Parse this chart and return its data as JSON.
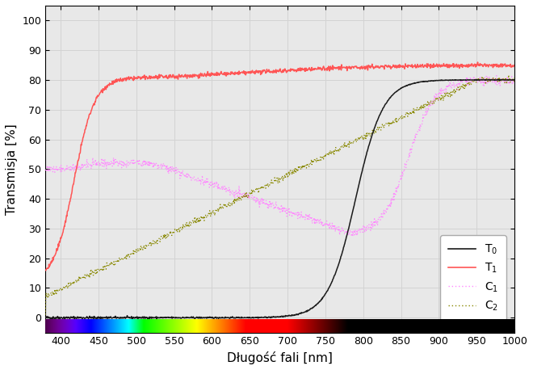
{
  "xlabel": "Długość fali [nm]",
  "ylabel": "Transmisja [%]",
  "xlim": [
    380,
    1000
  ],
  "ylim": [
    -5,
    105
  ],
  "yticks": [
    0,
    10,
    20,
    30,
    40,
    50,
    60,
    70,
    80,
    90,
    100
  ],
  "xticks": [
    400,
    450,
    500,
    550,
    600,
    650,
    700,
    750,
    800,
    850,
    900,
    950,
    1000
  ],
  "grid_color": "#d3d3d3",
  "background_color": "#e8e8e8",
  "line_T0_color": "#1a1a1a",
  "line_T1_color": "#ff5555",
  "line_C1_color": "#ff88ff",
  "line_C2_color": "#888800",
  "spectrum_xmin": 380,
  "spectrum_xmax": 800,
  "spectrum_ymin": -5,
  "spectrum_ymax": -0.5
}
